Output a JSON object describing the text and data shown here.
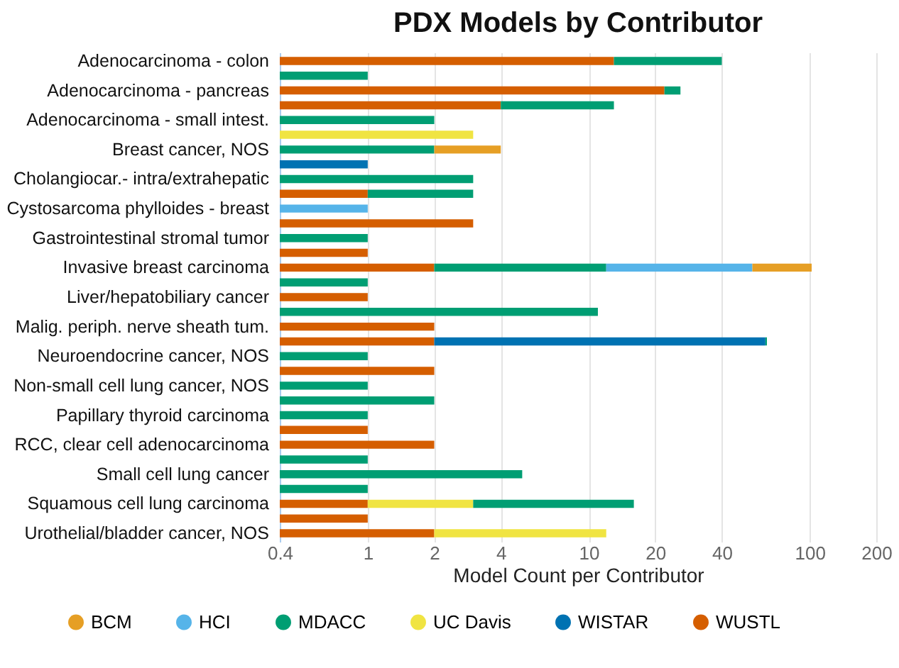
{
  "chart_data": {
    "type": "bar",
    "orientation": "horizontal",
    "stacked": true,
    "log": "x",
    "title": "PDX Models by Contributor",
    "xlabel": "Model Count per Contributor",
    "categories": [
      "Adenocarcinoma - colon",
      null,
      "Adenocarcinoma - pancreas",
      null,
      "Adenocarcinoma - small intest.",
      null,
      "Breast cancer, NOS",
      null,
      "Cholangiocar.- intra/extrahepatic",
      null,
      "Cystosarcoma phylloides - breast",
      null,
      "Gastrointestinal stromal tumor",
      null,
      "Invasive breast carcinoma",
      null,
      "Liver/hepatobiliary cancer",
      null,
      "Malig. periph. nerve sheath tum.",
      null,
      "Neuroendocrine cancer, NOS",
      null,
      "Non-small cell lung cancer, NOS",
      null,
      "Papillary thyroid carcinoma",
      null,
      "RCC, clear cell adenocarcinoma",
      null,
      "Small cell lung cancer",
      null,
      "Squamous cell lung carcinoma",
      null,
      "Urothelial/bladder cancer, NOS"
    ],
    "series": [
      {
        "name": "WUSTL",
        "color": "#d55e00",
        "values": [
          13,
          null,
          22,
          4,
          null,
          null,
          null,
          null,
          null,
          1,
          null,
          3,
          null,
          1,
          2,
          null,
          1,
          null,
          2,
          2,
          null,
          2,
          null,
          null,
          null,
          1,
          2,
          null,
          null,
          null,
          1,
          1,
          2
        ]
      },
      {
        "name": "UC Davis",
        "color": "#f0e442",
        "values": [
          null,
          null,
          null,
          null,
          null,
          3,
          null,
          null,
          null,
          null,
          null,
          null,
          null,
          null,
          null,
          null,
          null,
          null,
          null,
          null,
          null,
          null,
          null,
          null,
          null,
          null,
          null,
          null,
          null,
          null,
          2,
          null,
          10
        ]
      },
      {
        "name": "WISTAR",
        "color": "#0072b2",
        "values": [
          null,
          null,
          null,
          null,
          null,
          null,
          null,
          1,
          null,
          null,
          null,
          null,
          null,
          null,
          null,
          null,
          null,
          null,
          null,
          61,
          null,
          null,
          null,
          null,
          null,
          null,
          null,
          null,
          null,
          null,
          null,
          null,
          null
        ]
      },
      {
        "name": "MDACC",
        "color": "#009e73",
        "values": [
          27,
          1,
          4,
          9,
          2,
          null,
          2,
          null,
          3,
          2,
          null,
          null,
          1,
          null,
          10,
          1,
          null,
          11,
          null,
          1,
          1,
          null,
          1,
          2,
          1,
          null,
          null,
          1,
          5,
          1,
          13,
          null,
          null
        ]
      },
      {
        "name": "HCI",
        "color": "#56b4e9",
        "values": [
          null,
          null,
          null,
          null,
          null,
          null,
          null,
          null,
          null,
          null,
          1,
          null,
          null,
          null,
          43,
          null,
          null,
          null,
          null,
          null,
          null,
          null,
          null,
          null,
          null,
          null,
          null,
          null,
          null,
          null,
          null,
          null,
          null
        ]
      },
      {
        "name": "BCM",
        "color": "#e69f25",
        "values": [
          null,
          null,
          null,
          null,
          null,
          null,
          2,
          null,
          null,
          null,
          null,
          null,
          null,
          null,
          47,
          null,
          null,
          null,
          null,
          null,
          null,
          null,
          null,
          null,
          null,
          null,
          null,
          null,
          null,
          null,
          null,
          null,
          null
        ]
      }
    ],
    "xlim": [
      0.4,
      200
    ],
    "xticks": [
      0.4,
      1,
      2,
      4,
      10,
      20,
      40,
      100,
      200
    ],
    "grid": "x",
    "legend": "bottom"
  }
}
